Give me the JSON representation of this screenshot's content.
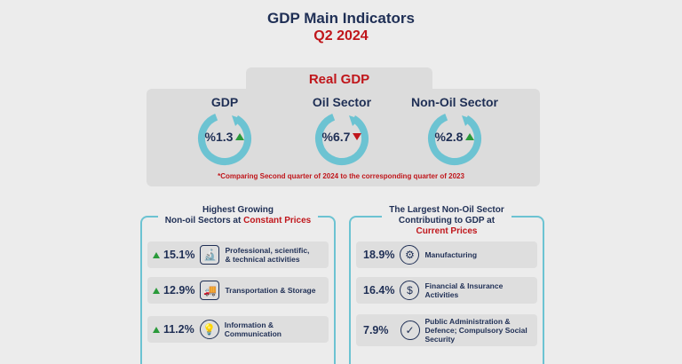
{
  "header": {
    "title": "GDP Main Indicators",
    "subtitle": "Q2 2024"
  },
  "real_gdp": {
    "heading": "Real GDP",
    "indicators": [
      {
        "label": "GDP",
        "value": "%1.3",
        "trend": "up"
      },
      {
        "label": "Oil Sector",
        "value": "%6.7",
        "trend": "down"
      },
      {
        "label": "Non-Oil Sector",
        "value": "%2.8",
        "trend": "up"
      }
    ],
    "note": "*Comparing Second quarter of 2024 to the corresponding quarter of 2023"
  },
  "growing": {
    "title_line1": "Highest Growing",
    "title_line2_prefix": "Non-oil Sectors at ",
    "title_line2_highlight": "Constant Prices",
    "rows": [
      {
        "value": "15.1%",
        "icon": "microscope-icon",
        "label_line1": "Professional, scientific,",
        "label_line2": "& technical activities"
      },
      {
        "value": "12.9%",
        "icon": "truck-icon",
        "label_line1": "Transportation & Storage",
        "label_line2": ""
      },
      {
        "value": "11.2%",
        "icon": "lightbulb-icon",
        "label_line1": "Information &",
        "label_line2": "Communication"
      }
    ]
  },
  "largest": {
    "title_line1": "The Largest Non-Oil Sector",
    "title_line2": "Contributing to GDP at",
    "title_line3": "Current Prices",
    "rows": [
      {
        "value": "18.9%",
        "icon": "gear-icon",
        "label_line1": "Manufacturing",
        "label_line2": "",
        "label_line3": ""
      },
      {
        "value": "16.4%",
        "icon": "money-hand-icon",
        "label_line1": "Financial & Insurance",
        "label_line2": "Activities",
        "label_line3": ""
      },
      {
        "value": "7.9%",
        "icon": "shield-icon",
        "label_line1": "Public Administration &",
        "label_line2": "Defence; Compulsory Social",
        "label_line3": "Security"
      }
    ]
  },
  "colors": {
    "navy": "#1f2f55",
    "red": "#c0161b",
    "green": "#2a9a3a",
    "teal": "#6cc3d2"
  }
}
